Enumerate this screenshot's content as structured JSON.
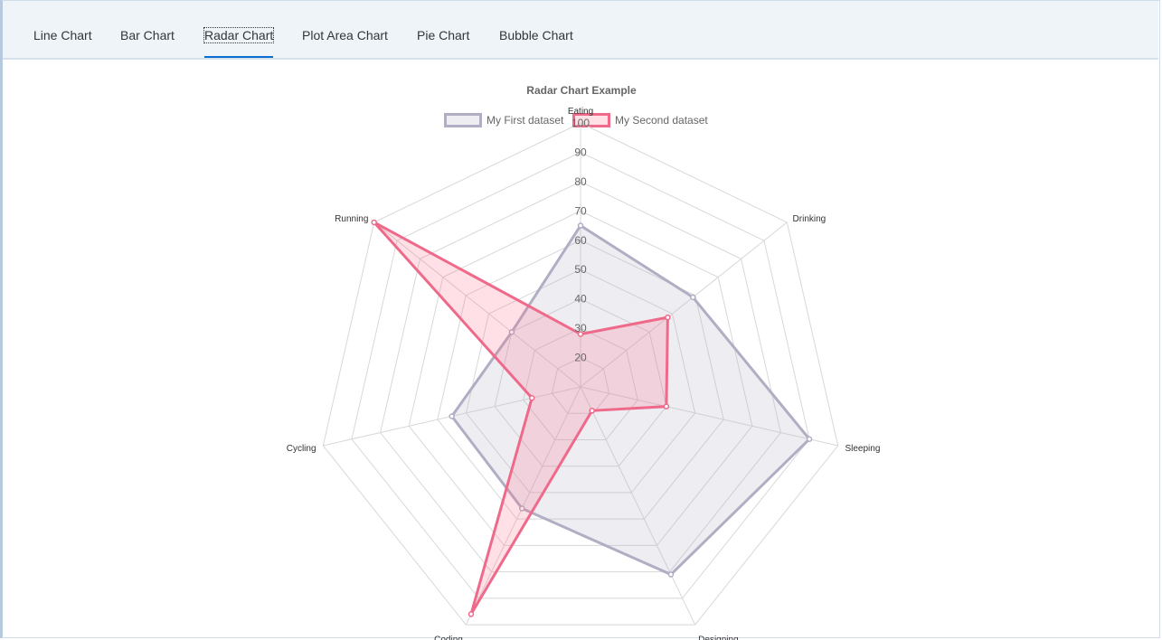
{
  "tabs": [
    {
      "label": "Line Chart"
    },
    {
      "label": "Bar Chart"
    },
    {
      "label": "Radar Chart",
      "active": true
    },
    {
      "label": "Plot Area Chart"
    },
    {
      "label": "Pie Chart"
    },
    {
      "label": "Bubble Chart"
    }
  ],
  "colors": {
    "first_border": "#b1aec4",
    "first_fill": "rgba(177,174,196,0.22)",
    "second_border": "#ef6a8a",
    "second_fill": "rgba(255,99,132,0.2)",
    "tab_indicator": "#0a6ed1",
    "grid": "#d8d8d8"
  },
  "chart_data": {
    "type": "radar",
    "title": "Radar Chart Example",
    "labels": [
      "Eating",
      "Drinking",
      "Sleeping",
      "Designing",
      "Coding",
      "Cycling",
      "Running"
    ],
    "ticks": [
      "20",
      "30",
      "40",
      "50",
      "60",
      "70",
      "80",
      "90",
      "100"
    ],
    "scale": {
      "min": 10,
      "max": 100,
      "step": 10
    },
    "legend_position": "top",
    "series": [
      {
        "name": "My First dataset",
        "values": [
          65,
          59,
          90,
          81,
          56,
          55,
          40
        ]
      },
      {
        "name": "My Second dataset",
        "values": [
          28,
          48,
          40,
          19,
          96,
          27,
          100
        ]
      }
    ]
  }
}
